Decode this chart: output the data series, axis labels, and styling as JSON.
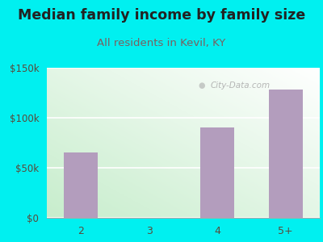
{
  "title": "Median family income by family size",
  "subtitle": "All residents in Kevil, KY",
  "categories": [
    "2",
    "3",
    "4",
    "5+"
  ],
  "values": [
    65000,
    0,
    90000,
    128000
  ],
  "bar_color": "#b39dbd",
  "ylim": [
    0,
    150000
  ],
  "yticks": [
    0,
    50000,
    100000,
    150000
  ],
  "ytick_labels": [
    "$0",
    "$50k",
    "$100k",
    "$150k"
  ],
  "bg_color": "#00f0f0",
  "title_color": "#222222",
  "subtitle_color": "#7a6060",
  "axis_label_color": "#5a4a3a",
  "watermark_text": "City-Data.com",
  "title_fontsize": 12.5,
  "subtitle_fontsize": 9.5,
  "grad_top_left": "#c8edd8",
  "grad_bottom_right": "#f5fffa"
}
